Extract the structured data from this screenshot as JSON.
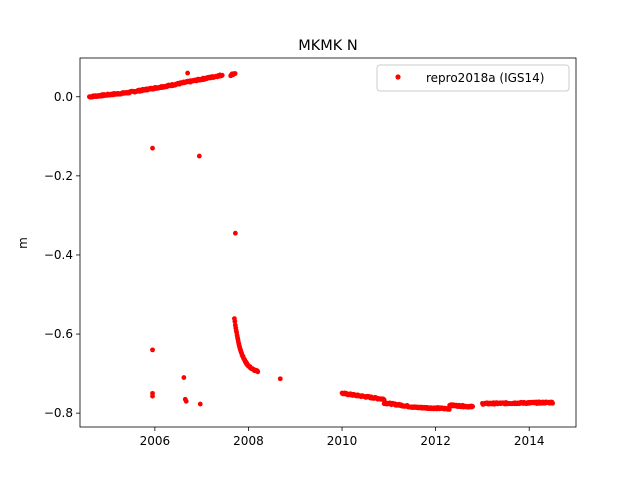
{
  "chart_data": {
    "type": "scatter",
    "title": "MKMK N",
    "xlabel": "",
    "ylabel": "m",
    "xlim": [
      2004.4,
      2015.0
    ],
    "ylim": [
      -0.835,
      0.098
    ],
    "xticks": [
      2006,
      2008,
      2010,
      2012,
      2014
    ],
    "xtick_labels": [
      "2006",
      "2008",
      "2010",
      "2012",
      "2014"
    ],
    "yticks": [
      0.0,
      -0.2,
      -0.4,
      -0.6,
      -0.8
    ],
    "ytick_labels": [
      "0.0",
      "−0.2",
      "−0.4",
      "−0.6",
      "−0.8"
    ],
    "grid": false,
    "legend_position": "top-right",
    "series": [
      {
        "name": "repro2018a (IGS14)",
        "color": "#ff0000",
        "marker": "dot",
        "segments": [
          {
            "x0": 2004.6,
            "x1": 2005.4,
            "y0": 0.0,
            "y1": 0.01
          },
          {
            "x0": 2005.4,
            "x1": 2006.3,
            "y0": 0.01,
            "y1": 0.028
          },
          {
            "x0": 2006.3,
            "x1": 2007.45,
            "y0": 0.028,
            "y1": 0.055
          },
          {
            "x0": 2007.62,
            "x1": 2007.72,
            "y0": 0.055,
            "y1": 0.06
          },
          {
            "x0": 2010.0,
            "x1": 2010.9,
            "y0": -0.75,
            "y1": -0.765
          },
          {
            "x0": 2010.9,
            "x1": 2011.5,
            "y0": -0.774,
            "y1": -0.784
          },
          {
            "x0": 2011.5,
            "x1": 2012.3,
            "y0": -0.785,
            "y1": -0.789
          },
          {
            "x0": 2012.3,
            "x1": 2012.8,
            "y0": -0.78,
            "y1": -0.784
          },
          {
            "x0": 2013.0,
            "x1": 2014.5,
            "y0": -0.776,
            "y1": -0.773
          }
        ],
        "decay": {
          "x0": 2007.7,
          "x1": 2008.2,
          "y_start": -0.56,
          "y_end": -0.7
        },
        "points": [
          {
            "x": 2005.95,
            "y": -0.13
          },
          {
            "x": 2005.95,
            "y": -0.64
          },
          {
            "x": 2005.95,
            "y": -0.75
          },
          {
            "x": 2005.95,
            "y": -0.757
          },
          {
            "x": 2006.62,
            "y": -0.71
          },
          {
            "x": 2006.65,
            "y": -0.765
          },
          {
            "x": 2006.67,
            "y": -0.77
          },
          {
            "x": 2006.7,
            "y": 0.06
          },
          {
            "x": 2006.95,
            "y": -0.15
          },
          {
            "x": 2006.97,
            "y": -0.777
          },
          {
            "x": 2007.72,
            "y": -0.345
          },
          {
            "x": 2008.68,
            "y": -0.713
          }
        ]
      }
    ]
  }
}
